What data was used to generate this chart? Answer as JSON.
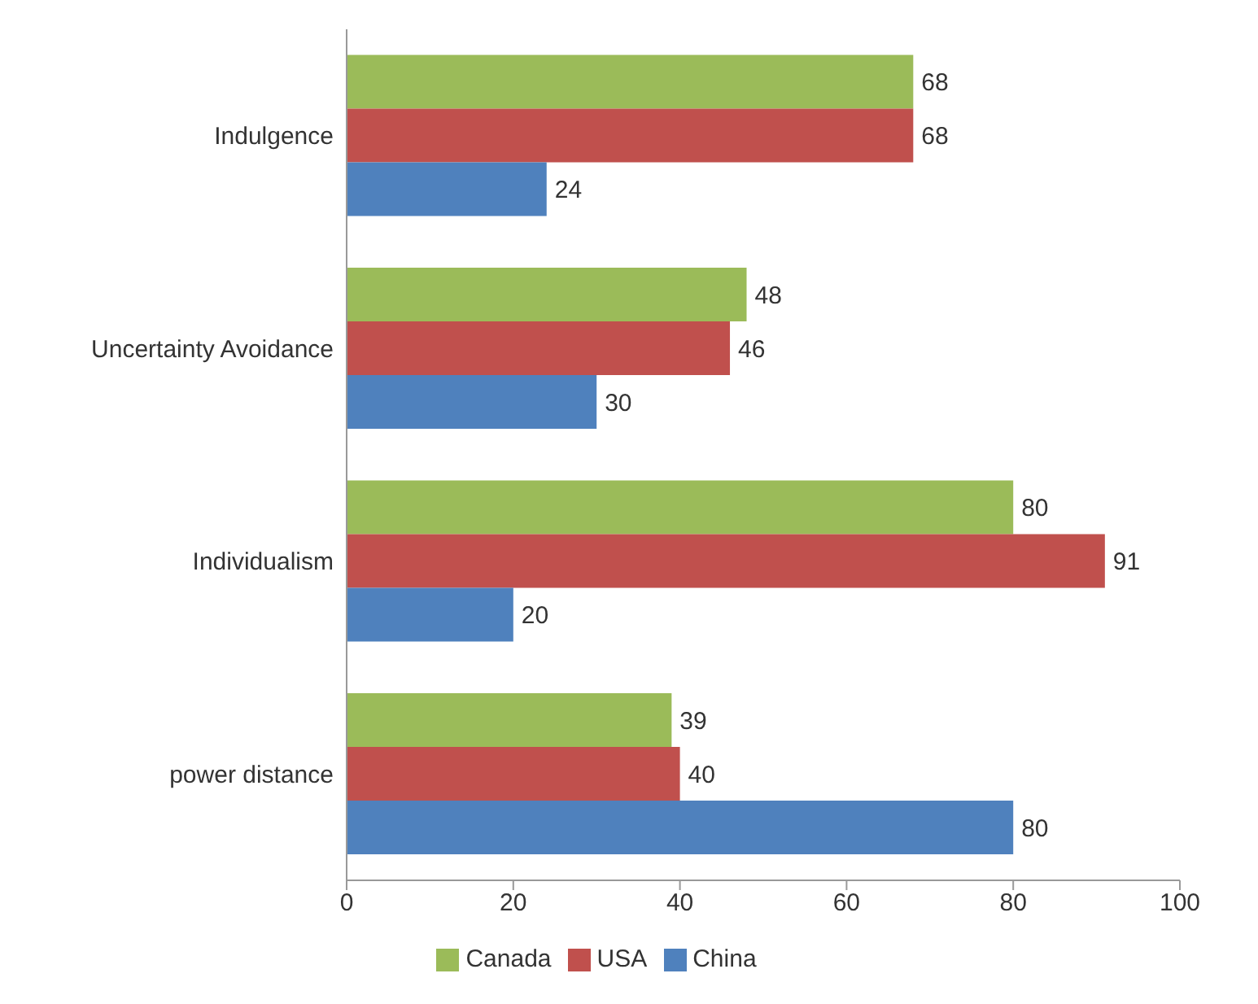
{
  "chart_data": {
    "type": "bar",
    "orientation": "horizontal",
    "categories": [
      "Indulgence",
      "Uncertainty Avoidance",
      "Individualism",
      "power distance"
    ],
    "series": [
      {
        "name": "Canada",
        "color": "#9bbb59",
        "values": [
          68,
          48,
          80,
          39
        ]
      },
      {
        "name": "USA",
        "color": "#c0504d",
        "values": [
          68,
          46,
          91,
          40
        ]
      },
      {
        "name": "China",
        "color": "#4f81bd",
        "values": [
          24,
          30,
          20,
          80
        ]
      }
    ],
    "xlim": [
      0,
      100
    ],
    "xticks": [
      0,
      20,
      40,
      60,
      80,
      100
    ],
    "data_labels": true,
    "legend": "bottom",
    "grid": false
  }
}
